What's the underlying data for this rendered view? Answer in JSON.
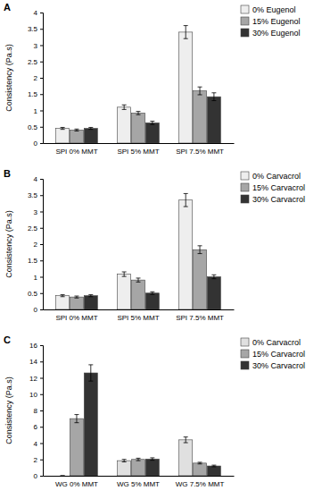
{
  "chart_data": [
    {
      "type": "bar",
      "title": "A",
      "y_label": "Consistency (Pa.s)",
      "categories": [
        "SPI 0% MMT",
        "SPI 5% MMT",
        "SPI 7.5% MMT"
      ],
      "series": [
        {
          "name": "0% Eugenol",
          "color": "#eeeeee",
          "values": [
            0.45,
            1.1,
            3.4
          ],
          "errors": [
            0.03,
            0.07,
            0.2
          ]
        },
        {
          "name": "15% Eugenol",
          "color": "#a6a6a6",
          "values": [
            0.4,
            0.92,
            1.6
          ],
          "errors": [
            0.03,
            0.05,
            0.12
          ]
        },
        {
          "name": "30% Eugenol",
          "color": "#333333",
          "values": [
            0.45,
            0.62,
            1.42
          ],
          "errors": [
            0.03,
            0.05,
            0.12
          ]
        }
      ],
      "ylim": [
        0,
        4
      ],
      "yticks": [
        0,
        0.5,
        1,
        1.5,
        2,
        2.5,
        3,
        3.5,
        4
      ],
      "grid": false,
      "legend": "right"
    },
    {
      "type": "bar",
      "title": "B",
      "y_label": "Consistency (Pa.s)",
      "categories": [
        "SPI 0% MMT",
        "SPI 5% MMT",
        "SPI 7.5% MMT"
      ],
      "series": [
        {
          "name": "0% Carvacrol",
          "color": "#eeeeee",
          "values": [
            0.42,
            1.08,
            3.35
          ],
          "errors": [
            0.03,
            0.07,
            0.2
          ]
        },
        {
          "name": "15% Carvacrol",
          "color": "#a6a6a6",
          "values": [
            0.38,
            0.9,
            1.83
          ],
          "errors": [
            0.03,
            0.06,
            0.12
          ]
        },
        {
          "name": "30% Carvacrol",
          "color": "#333333",
          "values": [
            0.42,
            0.5,
            1.0
          ],
          "errors": [
            0.03,
            0.04,
            0.06
          ]
        }
      ],
      "ylim": [
        0,
        4
      ],
      "yticks": [
        0,
        0.5,
        1,
        1.5,
        2,
        2.5,
        3,
        3.5,
        4
      ],
      "grid": false,
      "legend": "right"
    },
    {
      "type": "bar",
      "title": "C",
      "y_label": "Consistency (Pa.s)",
      "categories": [
        "WG 0% MMT",
        "WG 5% MMT",
        "WG 7.5% MMT"
      ],
      "series": [
        {
          "name": "0% Carvacrol",
          "color": "#e0e0e0",
          "values": [
            0,
            1.85,
            4.4
          ],
          "errors": [
            0,
            0.15,
            0.35
          ]
        },
        {
          "name": "15% Carvacrol",
          "color": "#a6a6a6",
          "values": [
            7.0,
            2.0,
            1.55
          ],
          "errors": [
            0.5,
            0.15,
            0.1
          ]
        },
        {
          "name": "30% Carvacrol",
          "color": "#333333",
          "values": [
            12.6,
            2.05,
            1.2
          ],
          "errors": [
            1.0,
            0.15,
            0.1
          ]
        }
      ],
      "ylim": [
        0,
        16
      ],
      "yticks": [
        0,
        2,
        4,
        6,
        8,
        10,
        12,
        14,
        16
      ],
      "grid": false,
      "legend": "right"
    }
  ]
}
